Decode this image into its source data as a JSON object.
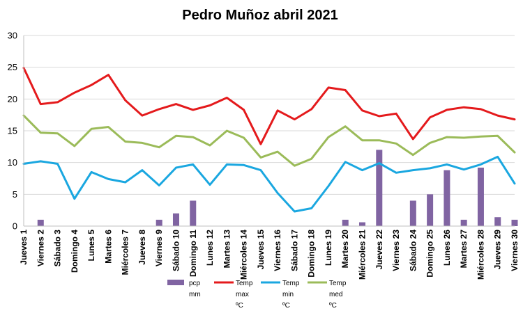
{
  "chart_data": {
    "type": "bar+line",
    "title": "Pedro Muñoz abril 2021",
    "xlabel": "",
    "ylabel": "",
    "ylim": [
      0,
      30
    ],
    "yticks": [
      0,
      5,
      10,
      15,
      20,
      25,
      30
    ],
    "grid": true,
    "legend_position": "bottom",
    "categories": [
      "Jueves 1",
      "Viernes 2",
      "Sábado 3",
      "Domingo 4",
      "Lunes 5",
      "Martes 6",
      "Miércoles 7",
      "Jueves 8",
      "Viernes 9",
      "Sábado 10",
      "Domingo 11",
      "Lunes 12",
      "Martes 13",
      "Miércoles 14",
      "Jueves 15",
      "Viernes 16",
      "Sábado 17",
      "Domingo 18",
      "Lunes 19",
      "Martes 20",
      "Miércoles 21",
      "Jueves 22",
      "Viernes 23",
      "Sábado 24",
      "Domingo 25",
      "Lunes 26",
      "Martes 27",
      "Miércoles 28",
      "Jueves 29",
      "Viernes 30"
    ],
    "bars": {
      "name": [
        "pcp",
        "mm"
      ],
      "color": "#8064a2",
      "values": [
        0,
        1.0,
        0,
        0,
        0,
        0,
        0,
        0,
        1.0,
        2.0,
        4.0,
        0,
        0,
        0,
        0,
        0,
        0,
        0,
        0,
        1.0,
        0.6,
        12.0,
        0,
        4.0,
        5.0,
        8.8,
        1.0,
        9.2,
        1.4,
        1.0
      ]
    },
    "series": [
      {
        "name": [
          "Temp",
          "max",
          "ºC"
        ],
        "color": "#e41a1c",
        "values": [
          24.9,
          19.2,
          19.5,
          21.0,
          22.2,
          23.8,
          19.8,
          17.4,
          18.4,
          19.2,
          18.3,
          19.0,
          20.2,
          18.3,
          12.9,
          18.2,
          16.8,
          18.4,
          21.8,
          21.4,
          18.2,
          17.3,
          17.7,
          13.7,
          17.1,
          18.3,
          18.7,
          18.4,
          17.4,
          16.8
        ]
      },
      {
        "name": [
          "Temp",
          "min",
          "ºC"
        ],
        "color": "#1aa7e0",
        "values": [
          9.8,
          10.2,
          9.8,
          4.3,
          8.5,
          7.4,
          6.9,
          8.8,
          6.4,
          9.2,
          9.7,
          6.5,
          9.7,
          9.6,
          8.8,
          5.2,
          2.3,
          2.8,
          6.3,
          10.1,
          8.8,
          9.9,
          8.4,
          8.8,
          9.1,
          9.7,
          8.9,
          9.7,
          10.9,
          6.7
        ]
      },
      {
        "name": [
          "Temp",
          "med",
          "ºC"
        ],
        "color": "#9bbb59",
        "values": [
          17.4,
          14.7,
          14.6,
          12.6,
          15.3,
          15.6,
          13.3,
          13.1,
          12.4,
          14.2,
          14.0,
          12.7,
          15.0,
          13.9,
          10.8,
          11.7,
          9.5,
          10.6,
          14.0,
          15.7,
          13.5,
          13.5,
          13.0,
          11.2,
          13.1,
          14.0,
          13.9,
          14.1,
          14.2,
          11.6
        ]
      }
    ]
  }
}
